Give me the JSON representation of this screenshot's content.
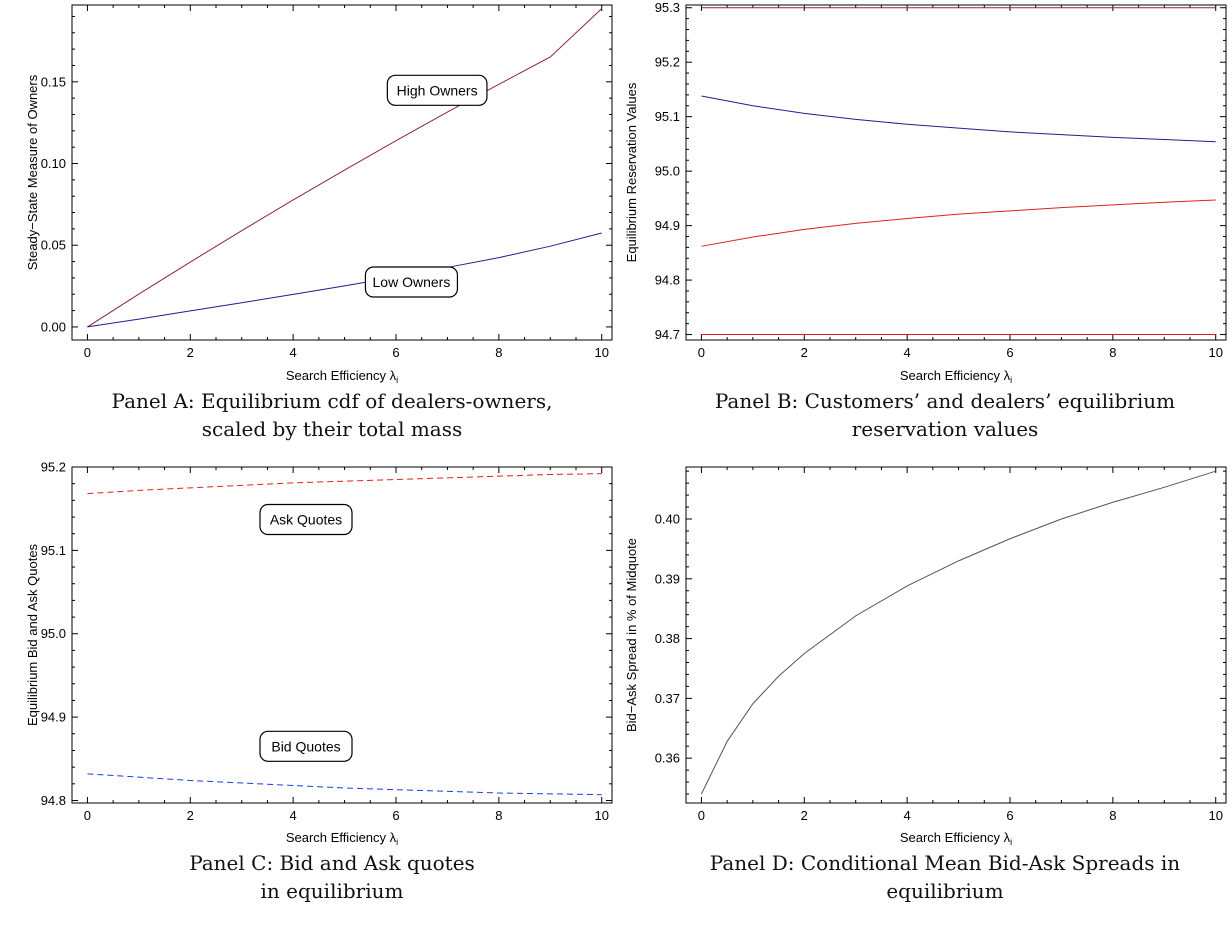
{
  "panels": [
    {
      "caption_lines": [
        "Panel A: Equilibrium cdf of dealers-owners,",
        "scaled by their total mass"
      ],
      "chart_data": {
        "type": "line",
        "title": "",
        "xlabel": "Search Efficiency λ",
        "xlabel_sub": "i",
        "ylabel": "Steady−State Measure of Owners",
        "xlim": [
          -0.3,
          10.2
        ],
        "ylim": [
          -0.008,
          0.197
        ],
        "xticks": [
          0,
          2,
          4,
          6,
          8,
          10
        ],
        "yticks": [
          0.0,
          0.05,
          0.1,
          0.15
        ],
        "ytick_labels": [
          "0.00",
          "0.05",
          "0.10",
          "0.15"
        ],
        "series": [
          {
            "x": [
              0,
              1,
              2,
              3,
              4,
              5,
              6,
              7,
              8,
              9,
              10
            ],
            "y": [
              0,
              0.0201,
              0.0397,
              0.0589,
              0.0777,
              0.096,
              0.114,
              0.1315,
              0.1485,
              0.1652,
              0.1948
            ],
            "color": "#8b2252",
            "dash": ""
          },
          {
            "x": [
              0,
              1,
              2,
              3,
              4,
              5,
              6,
              7,
              8,
              9,
              10
            ],
            "y": [
              0,
              0.0048,
              0.0098,
              0.0148,
              0.0199,
              0.0251,
              0.0306,
              0.0364,
              0.0424,
              0.0494,
              0.0575
            ],
            "color": "#1f1f8a",
            "dash": ""
          }
        ],
        "annotations": [
          {
            "text": "High Owners",
            "x": 6.8,
            "y": 0.1448
          },
          {
            "text": "Low Owners",
            "x": 6.3,
            "y": 0.0275
          }
        ]
      }
    },
    {
      "caption_lines": [
        "Panel B: Customers’ and dealers’ equilibrium",
        "reservation values"
      ],
      "chart_data": {
        "type": "line",
        "title": "",
        "xlabel": "Search Efficiency λ",
        "xlabel_sub": "i",
        "ylabel": "Equilibrium Reservation Values",
        "xlim": [
          -0.3,
          10.2
        ],
        "ylim": [
          94.69,
          95.305
        ],
        "xticks": [
          0,
          2,
          4,
          6,
          8,
          10
        ],
        "yticks": [
          94.7,
          94.8,
          94.9,
          95.0,
          95.1,
          95.2,
          95.3
        ],
        "ytick_labels": [
          "94.7",
          "94.8",
          "94.9",
          "95.0",
          "95.1",
          "95.2",
          "95.3"
        ],
        "series": [
          {
            "x": [
              0,
              10
            ],
            "y": [
              95.3,
              95.3
            ],
            "color": "#8b2252",
            "dash": ""
          },
          {
            "x": [
              0,
              1,
              2,
              3,
              4,
              5,
              6,
              7,
              8,
              9,
              10
            ],
            "y": [
              95.138,
              95.12,
              95.106,
              95.095,
              95.086,
              95.079,
              95.072,
              95.067,
              95.062,
              95.058,
              95.054
            ],
            "color": "#1f1f8a",
            "dash": ""
          },
          {
            "x": [
              0,
              1,
              2,
              3,
              4,
              5,
              6,
              7,
              8,
              9,
              10
            ],
            "y": [
              94.862,
              94.879,
              94.893,
              94.904,
              94.913,
              94.921,
              94.927,
              94.933,
              94.938,
              94.943,
              94.947
            ],
            "color": "#e0201b",
            "dash": ""
          },
          {
            "x": [
              0,
              10
            ],
            "y": [
              94.7,
              94.7
            ],
            "color": "#e0201b",
            "dash": ""
          }
        ],
        "annotations": []
      }
    },
    {
      "caption_lines": [
        "Panel C: Bid and Ask quotes",
        "in equilibrium"
      ],
      "chart_data": {
        "type": "line",
        "title": "",
        "xlabel": "Search Efficiency λ",
        "xlabel_sub": "i",
        "ylabel": "Equilibrium Bid and Ask Quotes",
        "xlim": [
          -0.3,
          10.2
        ],
        "ylim": [
          94.797,
          95.2
        ],
        "xticks": [
          0,
          2,
          4,
          6,
          8,
          10
        ],
        "yticks": [
          94.8,
          94.9,
          95.0,
          95.1,
          95.2
        ],
        "ytick_labels": [
          "94.8",
          "94.9",
          "95.0",
          "95.1",
          "95.2"
        ],
        "series": [
          {
            "x": [
              0,
              1,
              2,
              3,
              4,
              5,
              6,
              7,
              8,
              9,
              10
            ],
            "y": [
              95.168,
              95.172,
              95.175,
              95.178,
              95.181,
              95.183,
              95.185,
              95.187,
              95.189,
              95.191,
              95.192
            ],
            "color": "#e0201b",
            "dash": "6,4"
          },
          {
            "x": [
              0,
              1,
              2,
              3,
              4,
              5,
              6,
              7,
              8,
              9,
              10
            ],
            "y": [
              94.832,
              94.828,
              94.824,
              94.821,
              94.818,
              94.815,
              94.813,
              94.811,
              94.809,
              94.808,
              94.807
            ],
            "color": "#1a3ee0",
            "dash": "6,4"
          }
        ],
        "annotations": [
          {
            "text": "Ask Quotes",
            "x": 4.25,
            "y": 95.137
          },
          {
            "text": "Bid Quotes",
            "x": 4.25,
            "y": 94.865
          }
        ]
      }
    },
    {
      "caption_lines": [
        "Panel D: Conditional Mean Bid-Ask Spreads in",
        "equilibrium"
      ],
      "chart_data": {
        "type": "line",
        "title": "",
        "xlabel": "Search Efficiency λ",
        "xlabel_sub": "i",
        "ylabel": "Bid−Ask Spread in % of Midquote",
        "xlim": [
          -0.3,
          10.2
        ],
        "ylim": [
          0.3525,
          0.4087
        ],
        "xticks": [
          0,
          2,
          4,
          6,
          8,
          10
        ],
        "yticks": [
          0.36,
          0.37,
          0.38,
          0.39,
          0.4
        ],
        "ytick_labels": [
          "0.36",
          "0.37",
          "0.38",
          "0.39",
          "0.40"
        ],
        "series": [
          {
            "x": [
              0,
              0.5,
              1,
              1.5,
              2,
              3,
              4,
              5,
              6,
              7,
              8,
              9,
              10
            ],
            "y": [
              0.354,
              0.3628,
              0.3691,
              0.3737,
              0.3775,
              0.3838,
              0.3888,
              0.393,
              0.3967,
              0.4,
              0.4028,
              0.4053,
              0.408
            ],
            "color": "#555555",
            "dash": ""
          }
        ],
        "annotations": []
      }
    }
  ]
}
